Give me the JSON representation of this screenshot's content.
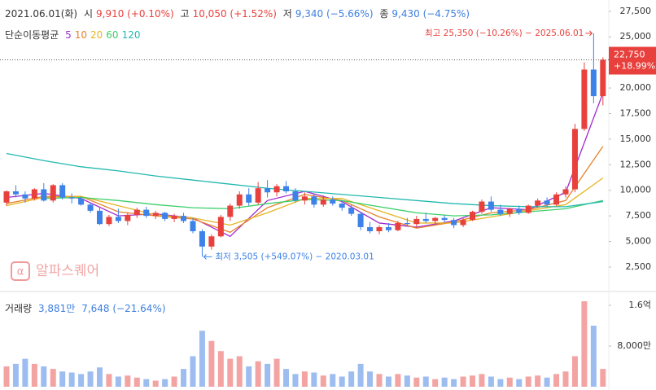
{
  "chart_data": {
    "type": "candlestick",
    "header": {
      "date": "2021.06.01(화)",
      "open_label": "시",
      "open_text": "9,910 (+0.10%)",
      "high_label": "고",
      "high_text": "10,050 (+1.52%)",
      "low_label": "저",
      "low_text": "9,340 (−5.66%)",
      "close_label": "종",
      "close_text": "9,430 (−4.75%)",
      "ma_title": "단순이동평균"
    },
    "logo": "알파스퀘어",
    "max_annotation": "최고 25,350 (−10.26%) − 2025.06.01",
    "min_annotation": "최저 3,505 (+549.07%) − 2020.03.01",
    "last_price": {
      "value": 22750,
      "label": "22,750"
    },
    "last_change": "+18.99%",
    "up_color": "#e8413d",
    "down_color": "#3d82e8",
    "ylim": [
      350,
      28600
    ],
    "yticks": [
      {
        "value": 2500,
        "label": "2,500"
      },
      {
        "value": 5000,
        "label": "5,000"
      },
      {
        "value": 7500,
        "label": "7,500"
      },
      {
        "value": 10000,
        "label": "10,000"
      },
      {
        "value": 12500,
        "label": "12,500"
      },
      {
        "value": 15000,
        "label": "15,000"
      },
      {
        "value": 17500,
        "label": "17,500"
      },
      {
        "value": 20000,
        "label": "20,000"
      },
      {
        "value": 22500,
        "label": "22,500"
      },
      {
        "value": 25000,
        "label": "25,000"
      },
      {
        "value": 27500,
        "label": "27,500"
      }
    ],
    "open": [
      8800,
      9900,
      9600,
      9200,
      10100,
      9000,
      10500,
      9300,
      9200,
      8600,
      8000,
      6700,
      7400,
      7000,
      7600,
      8100,
      7500,
      7800,
      7200,
      7500,
      7000,
      6000,
      4500,
      5500,
      7400,
      8500,
      9600,
      8800,
      10200,
      9800,
      10400,
      9900,
      9000,
      9400,
      8600,
      9100,
      8700,
      8300,
      7700,
      6400,
      6000,
      6400,
      6100,
      6800,
      6700,
      7200,
      7000,
      7300,
      7100,
      6600,
      7100,
      7900,
      8900,
      8100,
      7700,
      8200,
      7800,
      8500,
      9000,
      8600,
      9600,
      10100,
      16000,
      21800,
      19200
    ],
    "high": [
      10000,
      10500,
      9900,
      10200,
      10700,
      10600,
      10700,
      9700,
      9400,
      8800,
      8400,
      7600,
      8200,
      7800,
      8300,
      8400,
      8000,
      7900,
      7700,
      7800,
      7300,
      6200,
      5700,
      7600,
      8700,
      9900,
      10200,
      10800,
      11000,
      10600,
      10900,
      10200,
      9800,
      9600,
      9500,
      9400,
      9000,
      8600,
      7900,
      6900,
      6600,
      6800,
      7000,
      7300,
      7500,
      7800,
      7400,
      7600,
      7300,
      7300,
      8000,
      9100,
      9400,
      8600,
      8300,
      8500,
      8600,
      9200,
      9300,
      9800,
      10400,
      16500,
      22500,
      25350,
      23000
    ],
    "low": [
      8500,
      9300,
      8800,
      9000,
      8900,
      8800,
      9100,
      8700,
      8500,
      7800,
      6600,
      6500,
      6800,
      6600,
      7300,
      7300,
      7200,
      7000,
      6900,
      6800,
      5800,
      3505,
      4200,
      5400,
      7000,
      8200,
      8500,
      8600,
      9300,
      9400,
      9700,
      8800,
      8600,
      8300,
      8400,
      8500,
      8000,
      7500,
      6100,
      5800,
      5700,
      5900,
      6000,
      6500,
      6400,
      6800,
      6700,
      6900,
      6300,
      6400,
      7000,
      7700,
      7900,
      7500,
      7400,
      7600,
      7700,
      8300,
      8400,
      8500,
      9300,
      9800,
      15800,
      18500,
      18300
    ],
    "close": [
      9900,
      9600,
      9200,
      10100,
      9000,
      10500,
      9300,
      9200,
      8600,
      8000,
      6700,
      7400,
      7000,
      7600,
      8100,
      7500,
      7800,
      7200,
      7500,
      7000,
      6000,
      4500,
      5500,
      7400,
      8500,
      9600,
      8800,
      10200,
      9800,
      10400,
      9900,
      9000,
      9400,
      8600,
      9100,
      8700,
      8300,
      7700,
      6400,
      6000,
      6400,
      6100,
      6800,
      6700,
      7200,
      7000,
      7300,
      7100,
      6600,
      7100,
      7900,
      8900,
      8100,
      7700,
      8200,
      7800,
      8500,
      9000,
      8600,
      9600,
      10100,
      16000,
      21800,
      19200,
      22750
    ],
    "moving_averages": {
      "x": [
        0,
        4,
        8,
        12,
        16,
        20,
        24,
        28,
        32,
        36,
        40,
        44,
        48,
        52,
        56,
        60,
        64
      ],
      "series": [
        {
          "name": "5",
          "color": "#a22ad0",
          "values": [
            9300,
            9700,
            9200,
            7500,
            7700,
            7300,
            5500,
            9000,
            9900,
            8900,
            6800,
            6400,
            7000,
            8300,
            8100,
            9800,
            19500
          ]
        },
        {
          "name": "10",
          "color": "#e8822a",
          "values": [
            8700,
            9400,
            9400,
            7900,
            7500,
            7200,
            5900,
            8300,
            9600,
            9000,
            7400,
            6300,
            6900,
            7800,
            8100,
            9000,
            14300
          ]
        },
        {
          "name": "20",
          "color": "#e6b422",
          "values": [
            8500,
            9300,
            9400,
            8500,
            7600,
            7300,
            6600,
            7800,
            9200,
            9200,
            8000,
            6800,
            6800,
            7400,
            8000,
            8600,
            11200
          ]
        },
        {
          "name": "60",
          "color": "#3ccf6a",
          "values": [
            null,
            9200,
            9300,
            9000,
            8600,
            8300,
            8200,
            8700,
            9100,
            9000,
            8400,
            7800,
            7500,
            7600,
            7900,
            8200,
            9000
          ]
        },
        {
          "name": "120",
          "color": "#22b8b0",
          "values": [
            13600,
            12900,
            12300,
            11900,
            11400,
            11000,
            10600,
            10200,
            9900,
            9600,
            9300,
            9000,
            8700,
            8500,
            8400,
            8400,
            8900
          ]
        }
      ]
    },
    "volume_panel": {
      "title": "거래량",
      "last_text": "3,881만",
      "change_text": "7,648 (−21.64%)",
      "ylim": [
        0,
        184000000
      ],
      "yticks": [
        {
          "value": 80000000,
          "label": "8,000만"
        },
        {
          "value": 160000000,
          "label": "1.6억"
        }
      ],
      "values": [
        40000000,
        45000000,
        55000000,
        45000000,
        40000000,
        35000000,
        30000000,
        28000000,
        25000000,
        30000000,
        38000000,
        25000000,
        20000000,
        22000000,
        18000000,
        15000000,
        12000000,
        15000000,
        20000000,
        35000000,
        60000000,
        110000000,
        90000000,
        70000000,
        55000000,
        60000000,
        40000000,
        50000000,
        45000000,
        55000000,
        35000000,
        25000000,
        30000000,
        28000000,
        22000000,
        25000000,
        20000000,
        30000000,
        45000000,
        30000000,
        25000000,
        20000000,
        25000000,
        22000000,
        18000000,
        20000000,
        15000000,
        18000000,
        15000000,
        20000000,
        22000000,
        25000000,
        20000000,
        15000000,
        18000000,
        15000000,
        20000000,
        22000000,
        18000000,
        25000000,
        30000000,
        60000000,
        168000000,
        120000000,
        35000000
      ]
    }
  }
}
